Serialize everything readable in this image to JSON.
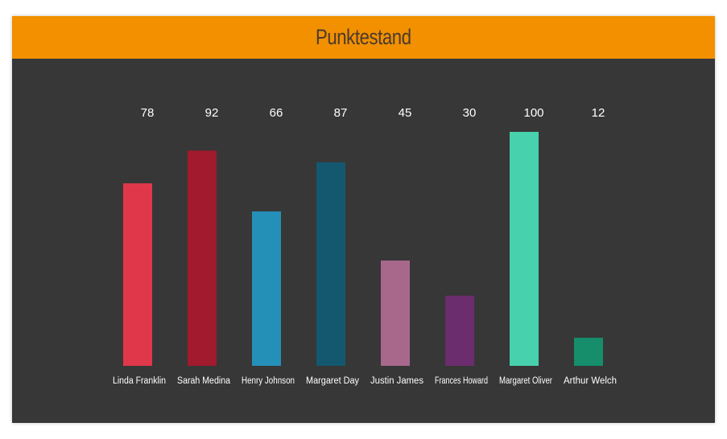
{
  "header": {
    "title": "Punktestand",
    "background": "#F29000",
    "title_color": "#4A3A2E"
  },
  "panel": {
    "background": "#373737"
  },
  "chart_data": {
    "type": "bar",
    "title": "Punktestand",
    "categories": [
      "Linda Franklin",
      "Sarah Medina",
      "Henry Johnson",
      "Margaret Day",
      "Justin James",
      "Frances Howard",
      "Margaret Oliver",
      "Arthur Welch"
    ],
    "values": [
      78,
      92,
      66,
      87,
      45,
      30,
      100,
      12
    ],
    "colors": [
      "#E0384A",
      "#A11A2E",
      "#2490B8",
      "#14586F",
      "#A8688C",
      "#6B2D6D",
      "#47D1AC",
      "#168E6C"
    ],
    "xlabel": "",
    "ylabel": "",
    "ylim": [
      0,
      100
    ],
    "grid": false,
    "label_color": "#FFFFFF"
  }
}
